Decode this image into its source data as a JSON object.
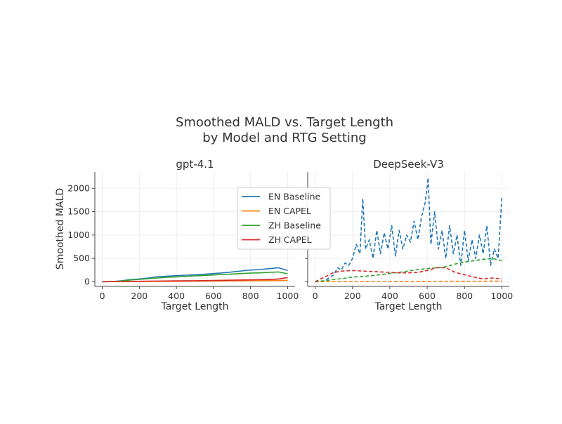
{
  "chart_data": {
    "title_lines": [
      "Smoothed MALD vs. Target Length",
      "by Model and RTG Setting"
    ],
    "type": "line",
    "shared_y": true,
    "ylabel": "Smoothed MALD",
    "xlim": [
      -40,
      1040
    ],
    "ylim": [
      -100,
      2350
    ],
    "xticks": [
      0,
      200,
      400,
      600,
      800,
      1000
    ],
    "yticks": [
      0,
      500,
      1000,
      1500,
      2000
    ],
    "grid": true,
    "legend": {
      "location": "upper right of first subplot",
      "entries": [
        "EN Baseline",
        "EN CAPEL",
        "ZH Baseline",
        "ZH CAPEL"
      ]
    },
    "colors": {
      "EN Baseline": "#1f77b4",
      "EN CAPEL": "#ff7f0e",
      "ZH Baseline": "#2ca02c",
      "ZH CAPEL": "#d62728"
    },
    "panels": [
      {
        "title": "gpt-4.1",
        "xlabel": "Target Length",
        "line_style": "solid",
        "series": [
          {
            "name": "EN Baseline",
            "x": [
              0,
              60,
              100,
              150,
              200,
              250,
              300,
              350,
              400,
              450,
              500,
              550,
              600,
              650,
              700,
              750,
              800,
              850,
              900,
              950,
              1000
            ],
            "y": [
              0,
              5,
              20,
              45,
              60,
              80,
              110,
              120,
              130,
              140,
              150,
              160,
              175,
              190,
              210,
              230,
              250,
              260,
              280,
              300,
              240
            ]
          },
          {
            "name": "EN CAPEL",
            "x": [
              0,
              100,
              200,
              300,
              400,
              500,
              600,
              700,
              800,
              900,
              1000
            ],
            "y": [
              0,
              3,
              5,
              8,
              10,
              12,
              15,
              18,
              20,
              25,
              30
            ]
          },
          {
            "name": "ZH Baseline",
            "x": [
              0,
              60,
              100,
              150,
              200,
              250,
              300,
              350,
              400,
              450,
              500,
              550,
              600,
              650,
              700,
              750,
              800,
              850,
              900,
              950,
              1000
            ],
            "y": [
              0,
              5,
              15,
              35,
              50,
              65,
              80,
              95,
              105,
              115,
              125,
              135,
              145,
              155,
              165,
              175,
              185,
              190,
              200,
              210,
              170
            ]
          },
          {
            "name": "ZH CAPEL",
            "x": [
              0,
              100,
              200,
              300,
              400,
              500,
              600,
              700,
              800,
              900,
              950,
              1000
            ],
            "y": [
              0,
              5,
              10,
              14,
              18,
              22,
              28,
              34,
              40,
              48,
              60,
              90
            ]
          }
        ]
      },
      {
        "title": "DeepSeek-V3",
        "xlabel": "Target Length",
        "line_style": "dashed",
        "series": [
          {
            "name": "EN Baseline",
            "x": [
              0,
              50,
              100,
              120,
              140,
              160,
              180,
              200,
              220,
              240,
              255,
              270,
              290,
              310,
              330,
              350,
              370,
              390,
              410,
              430,
              450,
              470,
              490,
              510,
              530,
              550,
              570,
              590,
              605,
              620,
              640,
              660,
              680,
              700,
              720,
              740,
              760,
              780,
              800,
              820,
              840,
              860,
              880,
              900,
              920,
              940,
              960,
              980,
              1000
            ],
            "y": [
              0,
              20,
              150,
              300,
              250,
              400,
              350,
              500,
              800,
              600,
              1780,
              700,
              900,
              500,
              1100,
              600,
              1050,
              700,
              1200,
              550,
              1100,
              700,
              1000,
              850,
              1300,
              900,
              1400,
              1700,
              2220,
              800,
              1500,
              700,
              1100,
              500,
              1200,
              600,
              1000,
              350,
              1100,
              450,
              900,
              500,
              1000,
              600,
              1200,
              350,
              700,
              500,
              1820
            ]
          },
          {
            "name": "EN CAPEL",
            "x": [
              0,
              100,
              200,
              300,
              400,
              500,
              600,
              700,
              800,
              900,
              950,
              1000
            ],
            "y": [
              0,
              2,
              5,
              5,
              5,
              8,
              8,
              10,
              10,
              10,
              15,
              10
            ]
          },
          {
            "name": "ZH Baseline",
            "x": [
              0,
              50,
              100,
              150,
              200,
              250,
              300,
              350,
              400,
              450,
              500,
              550,
              600,
              650,
              700,
              750,
              800,
              850,
              900,
              950,
              1000
            ],
            "y": [
              0,
              20,
              50,
              70,
              100,
              110,
              130,
              150,
              180,
              200,
              230,
              260,
              280,
              300,
              320,
              380,
              420,
              450,
              480,
              500,
              450
            ]
          },
          {
            "name": "ZH CAPEL",
            "x": [
              0,
              50,
              100,
              150,
              200,
              250,
              300,
              350,
              400,
              450,
              500,
              550,
              600,
              650,
              700,
              750,
              800,
              850,
              900,
              950,
              1000
            ],
            "y": [
              0,
              100,
              200,
              230,
              240,
              230,
              220,
              210,
              200,
              190,
              190,
              200,
              240,
              300,
              300,
              200,
              150,
              100,
              60,
              80,
              60
            ]
          }
        ]
      }
    ]
  }
}
